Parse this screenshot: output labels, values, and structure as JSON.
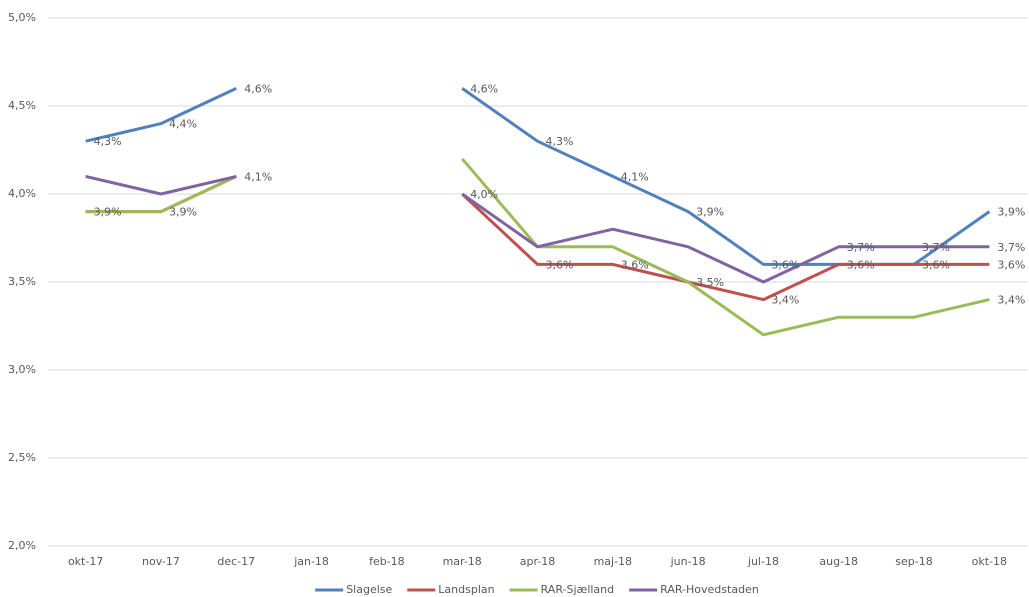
{
  "chart_data": {
    "type": "line",
    "categories": [
      "okt-17",
      "nov-17",
      "dec-17",
      "jan-18",
      "feb-18",
      "mar-18",
      "apr-18",
      "maj-18",
      "jun-18",
      "jul-18",
      "aug-18",
      "sep-18",
      "okt-18"
    ],
    "ylim": [
      2.0,
      5.0
    ],
    "yticks": [
      {
        "value": 2.0,
        "label": "2,0%"
      },
      {
        "value": 2.5,
        "label": "2,5%"
      },
      {
        "value": 3.0,
        "label": "3,0%"
      },
      {
        "value": 3.5,
        "label": "3,5%"
      },
      {
        "value": 4.0,
        "label": "4,0%"
      },
      {
        "value": 4.5,
        "label": "4,5%"
      },
      {
        "value": 5.0,
        "label": "5,0%"
      }
    ],
    "grid": true,
    "legend": "bottom",
    "series": [
      {
        "name": "Slagelse",
        "color": "#4f81bd",
        "values": [
          4.3,
          4.4,
          4.6,
          null,
          null,
          4.6,
          4.3,
          4.1,
          3.9,
          3.6,
          3.6,
          3.6,
          3.9
        ],
        "value_labels": [
          "4,3%",
          "4,4%",
          "4,6%",
          null,
          null,
          "4,6%",
          "4,3%",
          "4,1%",
          "3,9%",
          "3,6%",
          null,
          null,
          "3,9%"
        ]
      },
      {
        "name": "Landsplan",
        "color": "#c0504d",
        "values": [
          3.9,
          3.9,
          4.1,
          null,
          null,
          4.0,
          3.6,
          3.6,
          3.5,
          3.4,
          3.6,
          3.6,
          3.6
        ],
        "value_labels": [
          "3,9%",
          "3,9%",
          "4,1%",
          null,
          null,
          "4,0%",
          "3,6%",
          "3,6%",
          "3,5%",
          "3,4%",
          "3,6%",
          "3,6%",
          "3,6%"
        ]
      },
      {
        "name": "RAR-Sjælland",
        "color": "#9bbb59",
        "values": [
          3.9,
          3.9,
          4.1,
          null,
          null,
          4.2,
          3.7,
          3.7,
          3.5,
          3.2,
          3.3,
          3.3,
          3.4
        ],
        "value_labels": [
          null,
          null,
          null,
          null,
          null,
          null,
          null,
          null,
          null,
          null,
          null,
          null,
          "3,4%"
        ]
      },
      {
        "name": "RAR-Hovedstaden",
        "color": "#8064a2",
        "values": [
          4.1,
          4.0,
          4.1,
          null,
          null,
          4.0,
          3.7,
          3.8,
          3.7,
          3.5,
          3.7,
          3.7,
          3.7
        ],
        "value_labels": [
          null,
          null,
          null,
          null,
          null,
          null,
          null,
          null,
          null,
          null,
          "3,7%",
          "3,7%",
          "3,7%"
        ]
      }
    ]
  }
}
